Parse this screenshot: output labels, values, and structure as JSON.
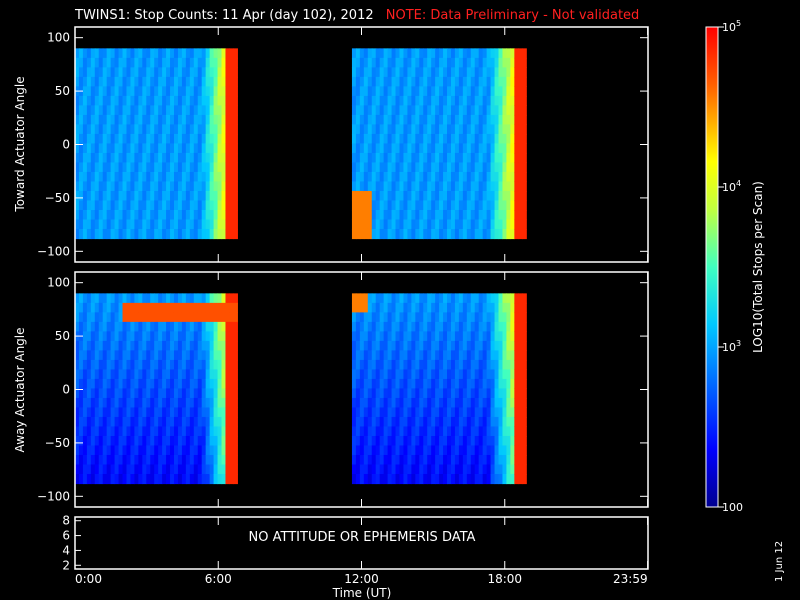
{
  "title": "TWINS1: Stop Counts: 11 Apr (day 102), 2012",
  "note": "NOTE: Data Preliminary - Not validated",
  "no_data_message": "NO ATTITUDE OR EPHEMERIS DATA",
  "date_stamp": "1 Jun 12",
  "colors": {
    "background": "#000000",
    "axes": "#ffffff",
    "note": "#ff2020"
  },
  "chart_data": [
    {
      "type": "heatmap",
      "panel": "top",
      "ylabel": "Toward Actuator Angle",
      "ylim": [
        -110,
        110
      ],
      "yticks": [
        100,
        50,
        0,
        -50,
        -100
      ],
      "xlim": [
        0,
        24
      ],
      "data_blocks_hours": [
        [
          0.0,
          6.8
        ],
        [
          11.6,
          18.9
        ]
      ],
      "angle_range": [
        -88,
        90
      ],
      "colorscale": "log10"
    },
    {
      "type": "heatmap",
      "panel": "middle",
      "ylabel": "Away Actuator Angle",
      "ylim": [
        -110,
        110
      ],
      "yticks": [
        100,
        50,
        0,
        -50,
        -100
      ],
      "xlim": [
        0,
        24
      ],
      "data_blocks_hours": [
        [
          0.0,
          6.8
        ],
        [
          11.6,
          18.9
        ]
      ],
      "angle_range": [
        -88,
        90
      ],
      "colorscale": "log10"
    },
    {
      "type": "line",
      "panel": "bottom",
      "ylim": [
        1.5,
        8.5
      ],
      "yticks": [
        "8",
        "6",
        "4",
        "2"
      ],
      "xlabel": "Time (UT)",
      "xticks": [
        "0:00",
        "6:00",
        "12:00",
        "18:00",
        "23:59"
      ],
      "note": "NO ATTITUDE OR EPHEMERIS DATA"
    }
  ],
  "colorbar": {
    "label": "LOG10(Total Stops per Scan)",
    "ticks": [
      {
        "label": "10^5",
        "value": 100000
      },
      {
        "label": "10^4",
        "value": 10000
      },
      {
        "label": "10^3",
        "value": 1000
      },
      {
        "label": "100",
        "value": 100
      }
    ],
    "range": [
      100,
      100000
    ]
  }
}
